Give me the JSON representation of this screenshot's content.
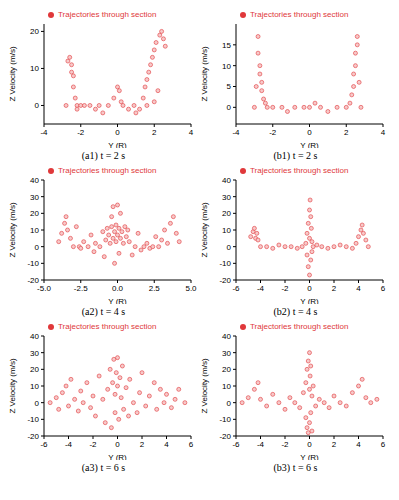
{
  "chart_data": [
    {
      "type": "scatter",
      "title": "(a1) t = 2 s",
      "xlabel": "Y (R)",
      "ylabel": "Z Velocity (m/s)",
      "xlim": [
        -4,
        4
      ],
      "xticks": [
        -4,
        -2,
        0,
        2,
        4
      ],
      "ylim": [
        -5,
        22
      ],
      "yticks": [
        0,
        10,
        20
      ],
      "x": [
        -2.8,
        -2.7,
        -2.6,
        -2.5,
        -2.5,
        -2.4,
        -2.4,
        -2.3,
        -2.2,
        -2.2,
        -2.0,
        -1.8,
        -1.5,
        -1.2,
        -1.0,
        -0.5,
        -0.2,
        0,
        0.1,
        0.2,
        0.3,
        0.6,
        0.9,
        1.2,
        1.4,
        1.5,
        1.6,
        1.7,
        1.8,
        1.9,
        2.0,
        2.1,
        2.3,
        2.4,
        2.5,
        2.6,
        2.2,
        2.0,
        1.6,
        -0.8,
        1.0
      ],
      "series": [
        {
          "name": "Trajectories through section",
          "color": "#e0383a",
          "marker": "circle",
          "values": [
            0,
            12,
            13,
            11,
            9,
            8,
            5,
            2,
            0,
            -1,
            0,
            0,
            0,
            -1,
            0,
            0,
            2,
            5,
            4,
            1,
            0,
            -1,
            0,
            -1,
            2,
            5,
            7,
            9,
            11,
            13,
            15,
            17,
            19,
            20,
            18,
            16,
            4,
            1,
            0,
            -2,
            -2
          ]
        }
      ]
    },
    {
      "type": "scatter",
      "title": "(b1) t = 2 s",
      "xlabel": "Y (R)",
      "ylabel": "Z Velocity (m/s)",
      "xlim": [
        -4,
        4
      ],
      "xticks": [
        -4,
        -2,
        0,
        2,
        4
      ],
      "ylim": [
        -4,
        20
      ],
      "yticks": [
        0,
        5,
        10,
        15
      ],
      "x": [
        -3.0,
        -2.9,
        -2.8,
        -2.8,
        -2.7,
        -2.7,
        -2.6,
        -2.6,
        -2.5,
        -2.4,
        -2.3,
        -2.0,
        -1.5,
        -1.2,
        -0.8,
        -0.3,
        0.3,
        0,
        0.6,
        1.0,
        1.5,
        2.0,
        2.2,
        2.3,
        2.4,
        2.4,
        2.5,
        2.5,
        2.6,
        2.6,
        2.7,
        2.8
      ],
      "series": [
        {
          "name": "Trajectories through section",
          "color": "#e0383a",
          "marker": "circle",
          "values": [
            0,
            5,
            17,
            13,
            10,
            8,
            6,
            4,
            2,
            1,
            0,
            0,
            0,
            -1,
            0,
            0,
            1,
            0,
            0,
            -1,
            0,
            0,
            1,
            3,
            5,
            8,
            10,
            13,
            15,
            17,
            6,
            0
          ]
        }
      ]
    },
    {
      "type": "scatter",
      "title": "(a2) t = 4 s",
      "xlabel": "Y (R)",
      "ylabel": "Z Velocity (m/s)",
      "xlim": [
        -5,
        5
      ],
      "xticks": [
        {
          "value": -5,
          "label": "-5.0"
        },
        {
          "value": -2.5,
          "label": "-2.5"
        },
        {
          "value": 0,
          "label": "0.0"
        },
        {
          "value": 2.5,
          "label": "2.5"
        },
        {
          "value": 5,
          "label": "5.0"
        }
      ],
      "ylim": [
        -20,
        40
      ],
      "yticks": [
        -20,
        -10,
        0,
        10,
        20,
        30,
        40
      ],
      "x": [
        -4.0,
        -3.8,
        -3.6,
        -3.5,
        -3.4,
        -3.2,
        -3.0,
        -2.8,
        -2.6,
        -2.5,
        -2.3,
        -2.0,
        -1.8,
        -1.6,
        -1.5,
        -1.2,
        -1.0,
        -0.9,
        -0.8,
        -0.7,
        -0.6,
        -0.5,
        -0.4,
        -0.4,
        -0.3,
        -0.3,
        -0.2,
        -0.2,
        -0.1,
        -0.1,
        0,
        0,
        0.1,
        0.1,
        0.2,
        0.2,
        0.3,
        0.4,
        0.5,
        0.6,
        0.7,
        0.8,
        1.0,
        1.2,
        1.4,
        1.6,
        1.8,
        2.0,
        2.2,
        2.4,
        2.6,
        2.8,
        3.0,
        3.2,
        3.4,
        3.6,
        3.8,
        4.0,
        4.2
      ],
      "series": [
        {
          "name": "Trajectories through section",
          "color": "#e0383a",
          "marker": "circle",
          "values": [
            3,
            8,
            14,
            18,
            10,
            5,
            0,
            12,
            0,
            -1,
            3,
            0,
            7,
            -3,
            2,
            0,
            9,
            -6,
            4,
            11,
            7,
            2,
            12,
            18,
            5,
            24,
            9,
            -10,
            13,
            3,
            7,
            25,
            11,
            -4,
            5,
            20,
            9,
            2,
            12,
            6,
            10,
            3,
            -5,
            0,
            8,
            -2,
            0,
            2,
            -1,
            0,
            6,
            0,
            4,
            10,
            2,
            14,
            18,
            8,
            3
          ]
        }
      ]
    },
    {
      "type": "scatter",
      "title": "(b2) t = 4 s",
      "xlabel": "Y (R)",
      "ylabel": "Z Velocity (m/s)",
      "xlim": [
        -6,
        6
      ],
      "xticks": [
        -6,
        -4,
        -2,
        0,
        2,
        4,
        6
      ],
      "ylim": [
        -20,
        40
      ],
      "yticks": [
        -20,
        -10,
        0,
        10,
        20,
        30,
        40
      ],
      "x": [
        -4.8,
        -4.6,
        -4.5,
        -4.4,
        -4.3,
        -4.2,
        -4.0,
        -3.5,
        -3.0,
        -2.5,
        -2.0,
        -1.5,
        -1.0,
        -0.6,
        -0.3,
        -0.2,
        -0.2,
        -0.1,
        -0.1,
        0,
        0,
        0,
        0.05,
        0.1,
        0.1,
        0.15,
        0.2,
        0.2,
        0.3,
        0.6,
        1.0,
        1.5,
        2.0,
        2.5,
        3.0,
        3.5,
        3.8,
        4.0,
        4.2,
        4.3,
        4.4,
        4.6,
        4.8
      ],
      "series": [
        {
          "name": "Trajectories through section",
          "color": "#e0383a",
          "marker": "circle",
          "values": [
            6,
            9,
            11,
            5,
            8,
            4,
            0,
            0,
            -1,
            1,
            0,
            0,
            -1,
            0,
            2,
            8,
            -5,
            14,
            -12,
            22,
            -17,
            5,
            28,
            18,
            -8,
            11,
            3,
            -3,
            0,
            1,
            0,
            -1,
            0,
            1,
            0,
            -1,
            2,
            6,
            10,
            13,
            8,
            4,
            0
          ]
        }
      ]
    },
    {
      "type": "scatter",
      "title": "(a3) t = 6 s",
      "xlabel": "Y (R)",
      "ylabel": "Z Velocity (m/s)",
      "xlim": [
        -6,
        6
      ],
      "xticks": [
        -6,
        -4,
        -2,
        0,
        2,
        4,
        6
      ],
      "ylim": [
        -20,
        40
      ],
      "yticks": [
        -20,
        -10,
        0,
        10,
        20,
        30,
        40
      ],
      "x": [
        -5.5,
        -5.0,
        -4.8,
        -4.5,
        -4.2,
        -4.0,
        -3.8,
        -3.5,
        -3.2,
        -3.0,
        -2.8,
        -2.5,
        -2.2,
        -2.0,
        -1.8,
        -1.5,
        -1.2,
        -1.0,
        -0.8,
        -0.6,
        -0.5,
        -0.4,
        -0.3,
        -0.2,
        -0.2,
        -0.1,
        0,
        0,
        0.1,
        0.2,
        0.3,
        0.4,
        0.5,
        0.7,
        0.9,
        1.0,
        1.3,
        1.6,
        1.8,
        2.0,
        2.3,
        2.6,
        3.0,
        3.2,
        3.5,
        3.8,
        4.0,
        4.4,
        4.7,
        5.0,
        5.5
      ],
      "series": [
        {
          "name": "Trajectories through section",
          "color": "#e0383a",
          "marker": "circle",
          "values": [
            0,
            3,
            -4,
            6,
            10,
            -2,
            14,
            2,
            -5,
            7,
            0,
            12,
            -3,
            4,
            -8,
            16,
            2,
            -12,
            8,
            20,
            -15,
            12,
            26,
            5,
            -6,
            18,
            10,
            27,
            -10,
            15,
            3,
            22,
            -4,
            9,
            -8,
            14,
            0,
            -6,
            6,
            18,
            -2,
            4,
            12,
            -4,
            8,
            0,
            5,
            -3,
            2,
            8,
            0
          ]
        }
      ]
    },
    {
      "type": "scatter",
      "title": "(b3) t = 6 s",
      "xlabel": "Y (R)",
      "ylabel": "Z Velocity (m/s)",
      "xlim": [
        -6,
        6
      ],
      "xticks": [
        -6,
        -4,
        -2,
        0,
        2,
        4,
        6
      ],
      "ylim": [
        -20,
        40
      ],
      "yticks": [
        -20,
        -10,
        0,
        10,
        20,
        30,
        40
      ],
      "x": [
        -5.5,
        -5.0,
        -4.5,
        -4.2,
        -4.0,
        -3.5,
        -3.0,
        -2.5,
        -2.0,
        -1.6,
        -1.2,
        -0.8,
        -0.5,
        -0.3,
        -0.3,
        -0.2,
        -0.2,
        -0.1,
        -0.1,
        0,
        0,
        0,
        0.05,
        0.1,
        0.1,
        0.2,
        0.2,
        0.3,
        0.5,
        0.8,
        1.2,
        1.6,
        2.0,
        2.5,
        3.0,
        3.5,
        4.0,
        4.3,
        4.6,
        5.0,
        5.5
      ],
      "series": [
        {
          "name": "Trajectories through section",
          "color": "#e0383a",
          "marker": "circle",
          "values": [
            0,
            3,
            8,
            12,
            2,
            -2,
            5,
            0,
            -4,
            3,
            0,
            -3,
            6,
            12,
            -9,
            20,
            -15,
            25,
            -18,
            30,
            8,
            -12,
            16,
            22,
            -6,
            4,
            -17,
            10,
            -2,
            2,
            0,
            -3,
            4,
            0,
            -2,
            6,
            10,
            14,
            3,
            0,
            2
          ]
        }
      ]
    }
  ]
}
